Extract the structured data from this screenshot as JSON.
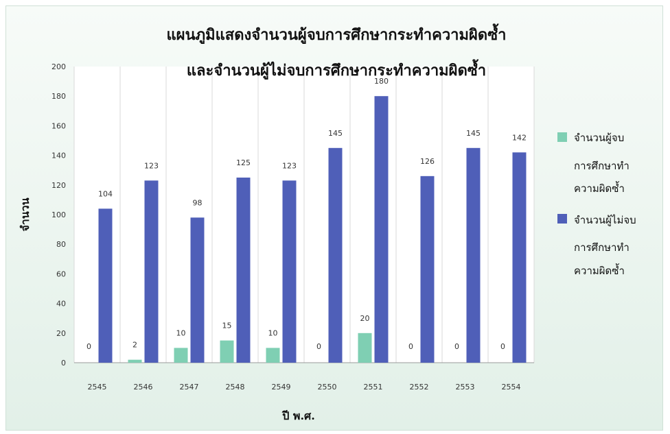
{
  "chart_data": {
    "type": "bar",
    "title_lines": [
      "แผนภูมิแสดงจำนวนผู้จบการศึกษากระทำความผิดซ้ำ",
      "และจำนวนผู้ไม่จบการศึกษากระทำความผิดซ้ำ"
    ],
    "xlabel": "ปี พ.ศ.",
    "ylabel": "จำนวน",
    "ylim": [
      0,
      200
    ],
    "yticks": [
      0,
      20,
      40,
      60,
      80,
      100,
      120,
      140,
      160,
      180,
      200
    ],
    "categories": [
      "2545",
      "2546",
      "2547",
      "2548",
      "2549",
      "2550",
      "2551",
      "2552",
      "2553",
      "2554"
    ],
    "series": [
      {
        "name": "จำนวนผู้จบการศึกษาทำความผิดซ้ำ",
        "legend_lines": [
          "จำนวนผู้จบ",
          "การศึกษาทำ",
          "ความผิดซ้ำ"
        ],
        "color": "#7fcfb3",
        "values": [
          0,
          2,
          10,
          15,
          10,
          0,
          20,
          0,
          0,
          0
        ]
      },
      {
        "name": "จำนวนผู้ไม่จบการศึกษาทำความผิดซ้ำ",
        "legend_lines": [
          "จำนวนผู้ไม่จบ",
          "การศึกษาทำ",
          "ความผิดซ้ำ"
        ],
        "color": "#4f5fb8",
        "values": [
          104,
          123,
          98,
          125,
          123,
          145,
          180,
          126,
          145,
          142
        ]
      }
    ],
    "grid": "vertical",
    "legend_position": "right"
  }
}
